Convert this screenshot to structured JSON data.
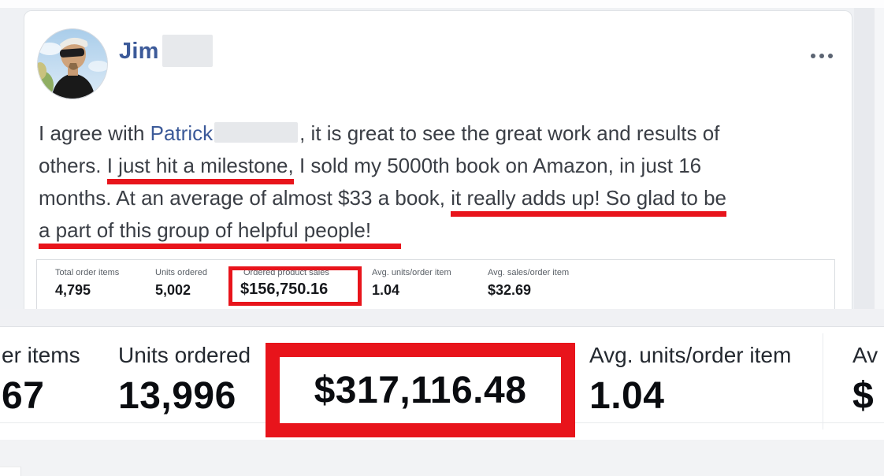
{
  "post": {
    "author": "Jim",
    "menu_icon": "ellipsis-horizontal",
    "lines": [
      [
        {
          "text": "I agree with "
        },
        {
          "text": "Patrick",
          "type": "link"
        },
        {
          "type": "redacted"
        },
        {
          "text": ", it is great to see the great work and results of"
        }
      ],
      [
        {
          "text": "others. "
        },
        {
          "text": "I just hit a milestone,",
          "underline": true
        },
        {
          "text": " I sold my 5000th book on Amazon, in just 16"
        }
      ],
      [
        {
          "text": "months. At an average of almost $33 a book, "
        },
        {
          "text": "it really adds up! So glad to be",
          "underline": true
        }
      ],
      [
        {
          "text": "a part of this group of helpful people!",
          "underline": "extend"
        }
      ]
    ]
  },
  "post_stats": {
    "columns": [
      {
        "label": "Total order items",
        "value": "4,795"
      },
      {
        "label": "Units ordered",
        "value": "5,002"
      },
      {
        "label": "Ordered product sales",
        "value": "$156,750.16",
        "boxed": true
      },
      {
        "label": "Avg. units/order item",
        "value": "1.04"
      },
      {
        "label": "Avg. sales/order item",
        "value": "$32.69"
      }
    ]
  },
  "zoom_stats": {
    "columns": [
      {
        "label": "er items",
        "value": "67"
      },
      {
        "label": "Units ordered",
        "value": "13,996"
      },
      {
        "label": "",
        "value": "$317,116.48",
        "boxed": true
      },
      {
        "label": "Avg. units/order item",
        "value": "1.04"
      },
      {
        "label": "Av",
        "value": "$"
      }
    ]
  },
  "colors": {
    "annotation_red": "#e8141b",
    "facebook_blue": "#3c5a99",
    "text_dark": "#3a3e45",
    "page_background": "#eff1f4"
  }
}
